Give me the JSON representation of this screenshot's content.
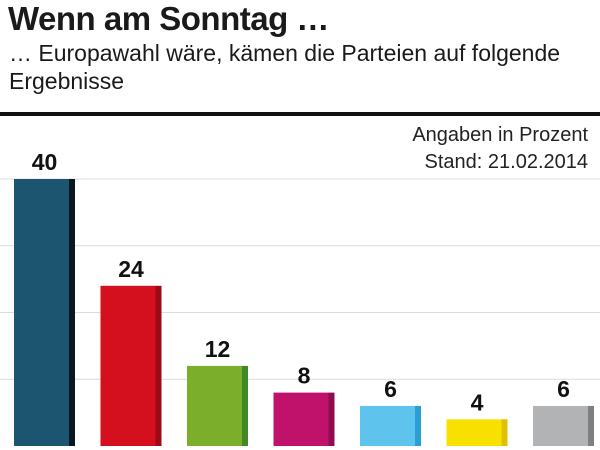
{
  "header": {
    "title": "Wenn am Sonntag …",
    "subtitle": "… Europawahl wäre, kämen die Parteien auf folgende Ergebnisse"
  },
  "note": {
    "line1": "Angaben in Prozent",
    "line2": "Stand: 21.02.2014"
  },
  "chart_data": {
    "type": "bar",
    "categories": [
      "",
      "",
      "",
      "",
      "",
      "",
      ""
    ],
    "values": [
      40,
      24,
      12,
      8,
      6,
      4,
      6
    ],
    "value_labels": [
      "40",
      "24",
      "12",
      "8",
      "6",
      "4",
      "6"
    ],
    "colors": [
      "#1c5570",
      "#d40f1e",
      "#7aae2b",
      "#c0126a",
      "#5ec4ee",
      "#f8e000",
      "#b1b3b4"
    ],
    "edge_colors": [
      "#0b1620",
      "#9b0a15",
      "#3f8a24",
      "#8e0d4f",
      "#2a9fd6",
      "#e0c000",
      "#7d7f80"
    ],
    "ylim": [
      0,
      40
    ],
    "grid": true,
    "legend": "none"
  }
}
